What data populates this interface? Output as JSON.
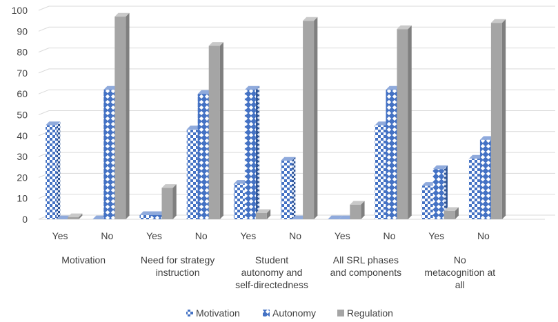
{
  "chart_data": {
    "type": "bar",
    "title": "",
    "xlabel": "",
    "ylabel": "",
    "ylim": [
      0,
      100
    ],
    "yticks": [
      0,
      10,
      20,
      30,
      40,
      50,
      60,
      70,
      80,
      90,
      100
    ],
    "grid": true,
    "style": "3d-clustered-column",
    "legend_position": "bottom",
    "groups": [
      {
        "label": [
          "Motivation"
        ],
        "subcategories": [
          "Yes",
          "No"
        ]
      },
      {
        "label": [
          "Need for strategy",
          "instruction"
        ],
        "subcategories": [
          "Yes",
          "No"
        ]
      },
      {
        "label": [
          "Student",
          "autonomy and",
          "self-directedness"
        ],
        "subcategories": [
          "Yes",
          "No"
        ]
      },
      {
        "label": [
          "All SRL phases",
          "and components"
        ],
        "subcategories": [
          "Yes",
          "No"
        ]
      },
      {
        "label": [
          "No",
          "metacognition at",
          "all"
        ],
        "subcategories": [
          "Yes",
          "No"
        ]
      }
    ],
    "series": [
      {
        "name": "Motivation",
        "color": "#4472c4",
        "pattern": "checker",
        "values": [
          45,
          0,
          2,
          43,
          17,
          28,
          0,
          45,
          16,
          29
        ]
      },
      {
        "name": "Autonomy",
        "color": "#4472c4",
        "pattern": "diamond",
        "values": [
          0,
          62,
          2,
          60,
          62,
          0,
          0,
          62,
          24,
          38
        ]
      },
      {
        "name": "Regulation",
        "color": "#a5a5a5",
        "pattern": "solid",
        "values": [
          1,
          97,
          15,
          83,
          3,
          95,
          7,
          91,
          4,
          94
        ]
      }
    ]
  }
}
